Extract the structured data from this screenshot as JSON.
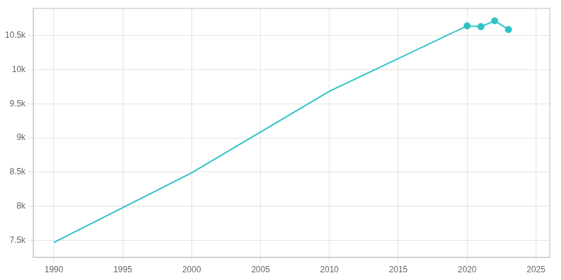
{
  "chart_data": {
    "type": "line",
    "x": [
      1990,
      2000,
      2010,
      2020,
      2021,
      2022,
      2023
    ],
    "series": [
      {
        "color": "#2ec4c4",
        "marker": "none",
        "line_style": "solid",
        "values": [
          7467,
          8490,
          9686,
          10644,
          10632,
          10718,
          10590
        ]
      },
      {
        "color": "#2ec4c4",
        "marker": "circle",
        "line_style": "none",
        "values": [
          null,
          null,
          null,
          10644,
          10632,
          10718,
          10590
        ]
      }
    ],
    "xlim": [
      1988.5,
      2026
    ],
    "xticks": [
      1990,
      1995,
      2000,
      2005,
      2010,
      2015,
      2020,
      2025
    ],
    "ylim": [
      7250,
      10900
    ],
    "yticks": [
      {
        "value": 7500,
        "label": "7.5k"
      },
      {
        "value": 8000,
        "label": "8k"
      },
      {
        "value": 8500,
        "label": "8.5k"
      },
      {
        "value": 9000,
        "label": "9k"
      },
      {
        "value": 9500,
        "label": "9.5k"
      },
      {
        "value": 10000,
        "label": "10k"
      },
      {
        "value": 10500,
        "label": "10.5k"
      }
    ],
    "grid": true
  }
}
